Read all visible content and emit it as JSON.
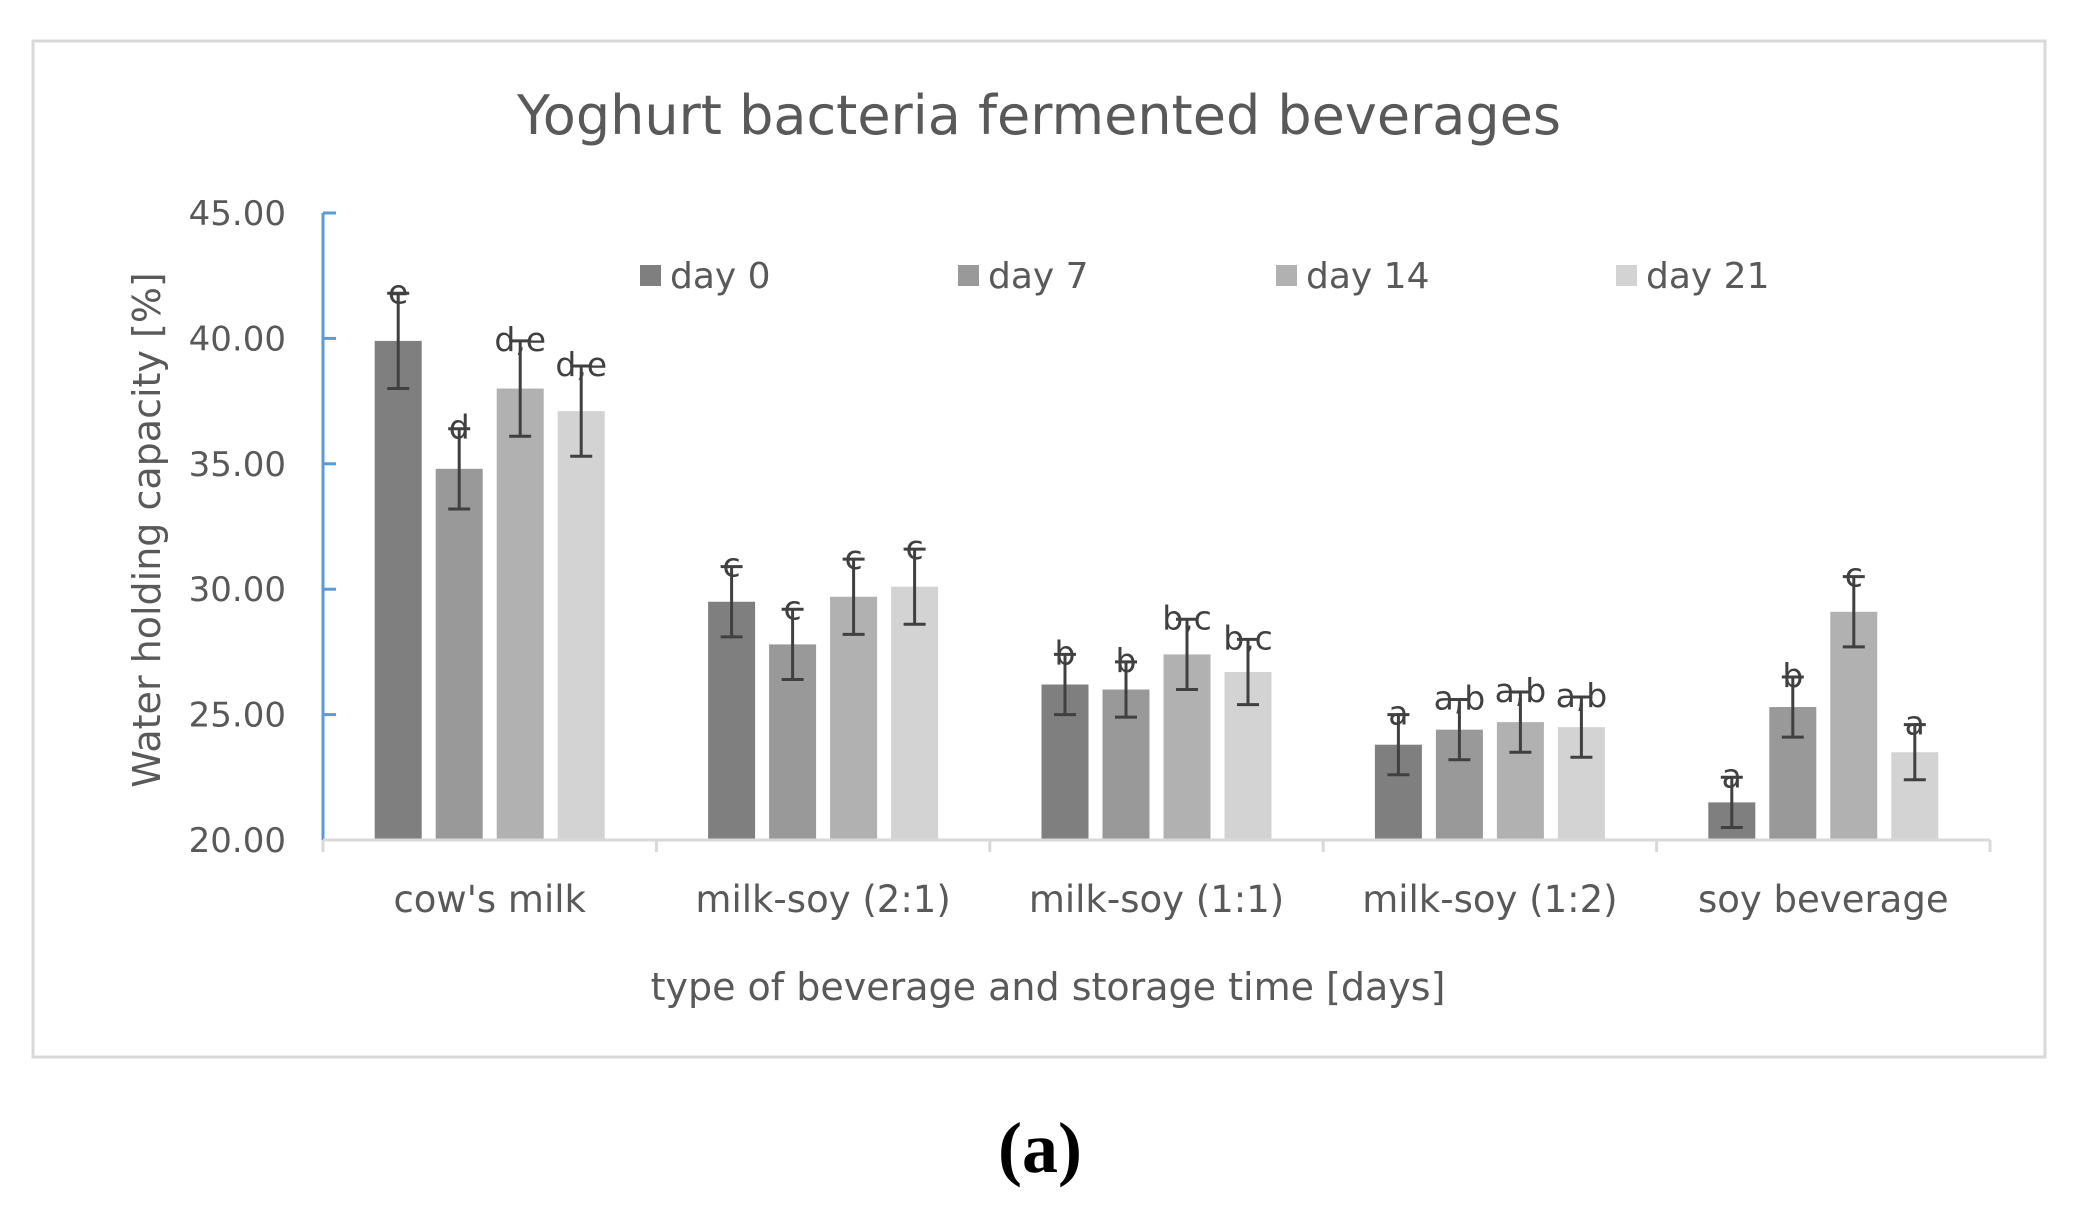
{
  "chart_data": {
    "type": "bar",
    "title": "Yoghurt bacteria fermented beverages",
    "xlabel": "type of beverage  and storage time [days]",
    "ylabel": "Water holding capacity [%]",
    "ylim": [
      20,
      45
    ],
    "yticks": [
      "20.00",
      "25.00",
      "30.00",
      "35.00",
      "40.00",
      "45.00"
    ],
    "categories": [
      "cow's milk",
      "milk-soy (2:1)",
      "milk-soy (1:1)",
      "milk-soy (1:2)",
      "soy beverage"
    ],
    "series": [
      {
        "name": "day 0",
        "color": "#7f7f7f",
        "values": [
          39.9,
          29.5,
          26.2,
          23.8,
          21.5
        ],
        "errors": [
          1.9,
          1.4,
          1.2,
          1.2,
          1.0
        ],
        "labels": [
          "e",
          "c",
          "b",
          "a",
          "a"
        ]
      },
      {
        "name": "day 7",
        "color": "#999999",
        "values": [
          34.8,
          27.8,
          26.0,
          24.4,
          25.3
        ],
        "errors": [
          1.6,
          1.4,
          1.1,
          1.2,
          1.2
        ],
        "labels": [
          "d",
          "c",
          "b",
          "a,b",
          "b"
        ]
      },
      {
        "name": "day 14",
        "color": "#b1b1b1",
        "values": [
          38.0,
          29.7,
          27.4,
          24.7,
          29.1
        ],
        "errors": [
          1.9,
          1.5,
          1.4,
          1.2,
          1.4
        ],
        "labels": [
          "d,e",
          "c",
          "b,c",
          "a,b",
          "c"
        ]
      },
      {
        "name": "day 21",
        "color": "#d3d3d3",
        "values": [
          37.1,
          30.1,
          26.7,
          24.5,
          23.5
        ],
        "errors": [
          1.8,
          1.5,
          1.3,
          1.2,
          1.1
        ],
        "labels": [
          "d,e",
          "c",
          "b,c",
          "a,b",
          "a"
        ]
      }
    ],
    "legend_position": "top-center"
  },
  "panel_label": "(a)"
}
